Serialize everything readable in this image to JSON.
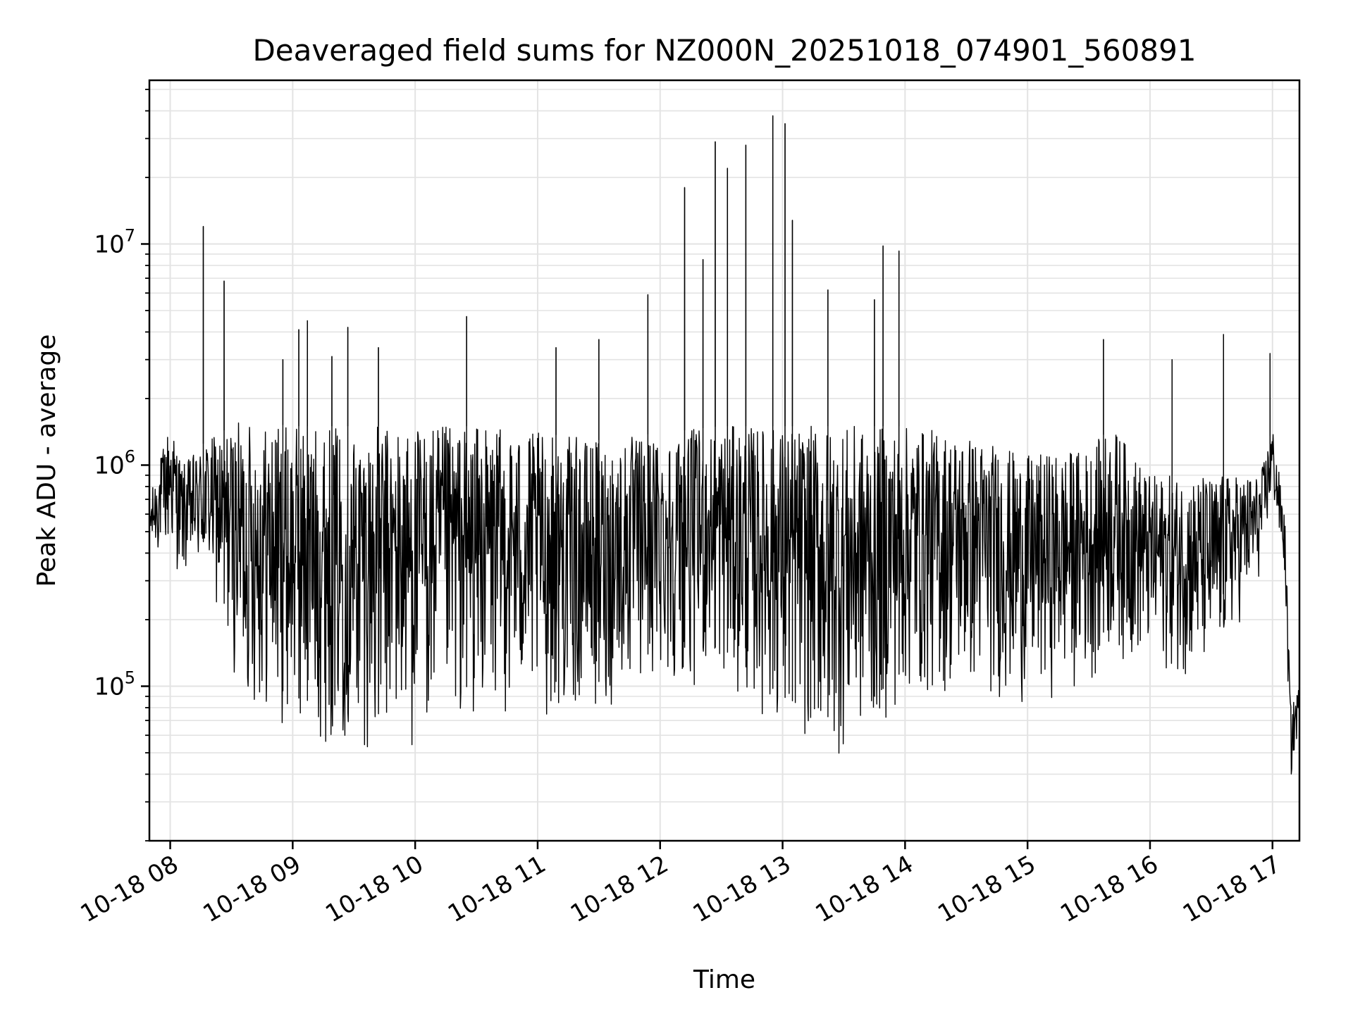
{
  "chart_data": {
    "type": "line",
    "title": "Deaveraged field sums for NZ000N_20251018_074901_560891",
    "xlabel": "Time",
    "ylabel": "Peak ADU - average",
    "yscale": "log",
    "ylim": [
      20000,
      55000000
    ],
    "xlim_hours": [
      7.83,
      17.22
    ],
    "x_ticks": [
      {
        "hour": 8,
        "label": "10-18 08"
      },
      {
        "hour": 9,
        "label": "10-18 09"
      },
      {
        "hour": 10,
        "label": "10-18 10"
      },
      {
        "hour": 11,
        "label": "10-18 11"
      },
      {
        "hour": 12,
        "label": "10-18 12"
      },
      {
        "hour": 13,
        "label": "10-18 13"
      },
      {
        "hour": 14,
        "label": "10-18 14"
      },
      {
        "hour": 15,
        "label": "10-18 15"
      },
      {
        "hour": 16,
        "label": "10-18 16"
      },
      {
        "hour": 17,
        "label": "10-18 17"
      }
    ],
    "y_ticks": [
      {
        "value": 100000,
        "base": "10",
        "exp": "5"
      },
      {
        "value": 1000000,
        "base": "10",
        "exp": "6"
      },
      {
        "value": 10000000,
        "base": "10",
        "exp": "7"
      }
    ],
    "grid": true,
    "series_color": "#000000",
    "series": [
      {
        "name": "Peak ADU - average",
        "sampling": "dense irregular time series; approximated with envelope and notable spikes",
        "envelope": [
          {
            "h": 7.83,
            "low": 380000,
            "high": 700000
          },
          {
            "h": 8.0,
            "low": 380000,
            "high": 1600000
          },
          {
            "h": 8.1,
            "low": 300000,
            "high": 1000000
          },
          {
            "h": 8.3,
            "low": 300000,
            "high": 1300000
          },
          {
            "h": 8.5,
            "low": 120000,
            "high": 1500000
          },
          {
            "h": 8.6,
            "low": 80000,
            "high": 1600000
          },
          {
            "h": 9.0,
            "low": 60000,
            "high": 1500000
          },
          {
            "h": 9.5,
            "low": 50000,
            "high": 1500000
          },
          {
            "h": 10.0,
            "low": 50000,
            "high": 1500000
          },
          {
            "h": 10.5,
            "low": 70000,
            "high": 1500000
          },
          {
            "h": 11.0,
            "low": 70000,
            "high": 1400000
          },
          {
            "h": 11.5,
            "low": 70000,
            "high": 1300000
          },
          {
            "h": 12.0,
            "low": 100000,
            "high": 1400000
          },
          {
            "h": 12.5,
            "low": 100000,
            "high": 1500000
          },
          {
            "h": 13.0,
            "low": 60000,
            "high": 1500000
          },
          {
            "h": 13.5,
            "low": 45000,
            "high": 1500000
          },
          {
            "h": 14.0,
            "low": 80000,
            "high": 1500000
          },
          {
            "h": 14.5,
            "low": 90000,
            "high": 1400000
          },
          {
            "h": 15.0,
            "low": 80000,
            "high": 1100000
          },
          {
            "h": 15.5,
            "low": 100000,
            "high": 1200000
          },
          {
            "h": 15.7,
            "low": 130000,
            "high": 1500000
          },
          {
            "h": 16.0,
            "low": 120000,
            "high": 900000
          },
          {
            "h": 16.5,
            "low": 100000,
            "high": 900000
          },
          {
            "h": 16.9,
            "low": 300000,
            "high": 900000
          },
          {
            "h": 17.0,
            "low": 700000,
            "high": 1500000
          },
          {
            "h": 17.1,
            "low": 300000,
            "high": 600000
          },
          {
            "h": 17.15,
            "low": 35000,
            "high": 80000
          },
          {
            "h": 17.22,
            "low": 70000,
            "high": 100000
          }
        ],
        "spikes": [
          {
            "h": 8.27,
            "v": 12000000
          },
          {
            "h": 8.44,
            "v": 6800000
          },
          {
            "h": 8.92,
            "v": 3000000
          },
          {
            "h": 9.05,
            "v": 4100000
          },
          {
            "h": 9.12,
            "v": 4500000
          },
          {
            "h": 9.32,
            "v": 3100000
          },
          {
            "h": 9.45,
            "v": 4200000
          },
          {
            "h": 9.7,
            "v": 3400000
          },
          {
            "h": 10.42,
            "v": 4700000
          },
          {
            "h": 11.15,
            "v": 3400000
          },
          {
            "h": 11.5,
            "v": 3700000
          },
          {
            "h": 11.9,
            "v": 5900000
          },
          {
            "h": 12.2,
            "v": 18000000
          },
          {
            "h": 12.35,
            "v": 8500000
          },
          {
            "h": 12.45,
            "v": 29000000
          },
          {
            "h": 12.55,
            "v": 22000000
          },
          {
            "h": 12.7,
            "v": 28000000
          },
          {
            "h": 12.92,
            "v": 38000000
          },
          {
            "h": 13.02,
            "v": 35000000
          },
          {
            "h": 13.08,
            "v": 12800000
          },
          {
            "h": 13.37,
            "v": 6200000
          },
          {
            "h": 13.75,
            "v": 5600000
          },
          {
            "h": 13.82,
            "v": 9800000
          },
          {
            "h": 13.95,
            "v": 9300000
          },
          {
            "h": 15.62,
            "v": 3700000
          },
          {
            "h": 16.18,
            "v": 3000000
          },
          {
            "h": 16.6,
            "v": 3900000
          },
          {
            "h": 16.98,
            "v": 3200000
          }
        ]
      }
    ]
  }
}
